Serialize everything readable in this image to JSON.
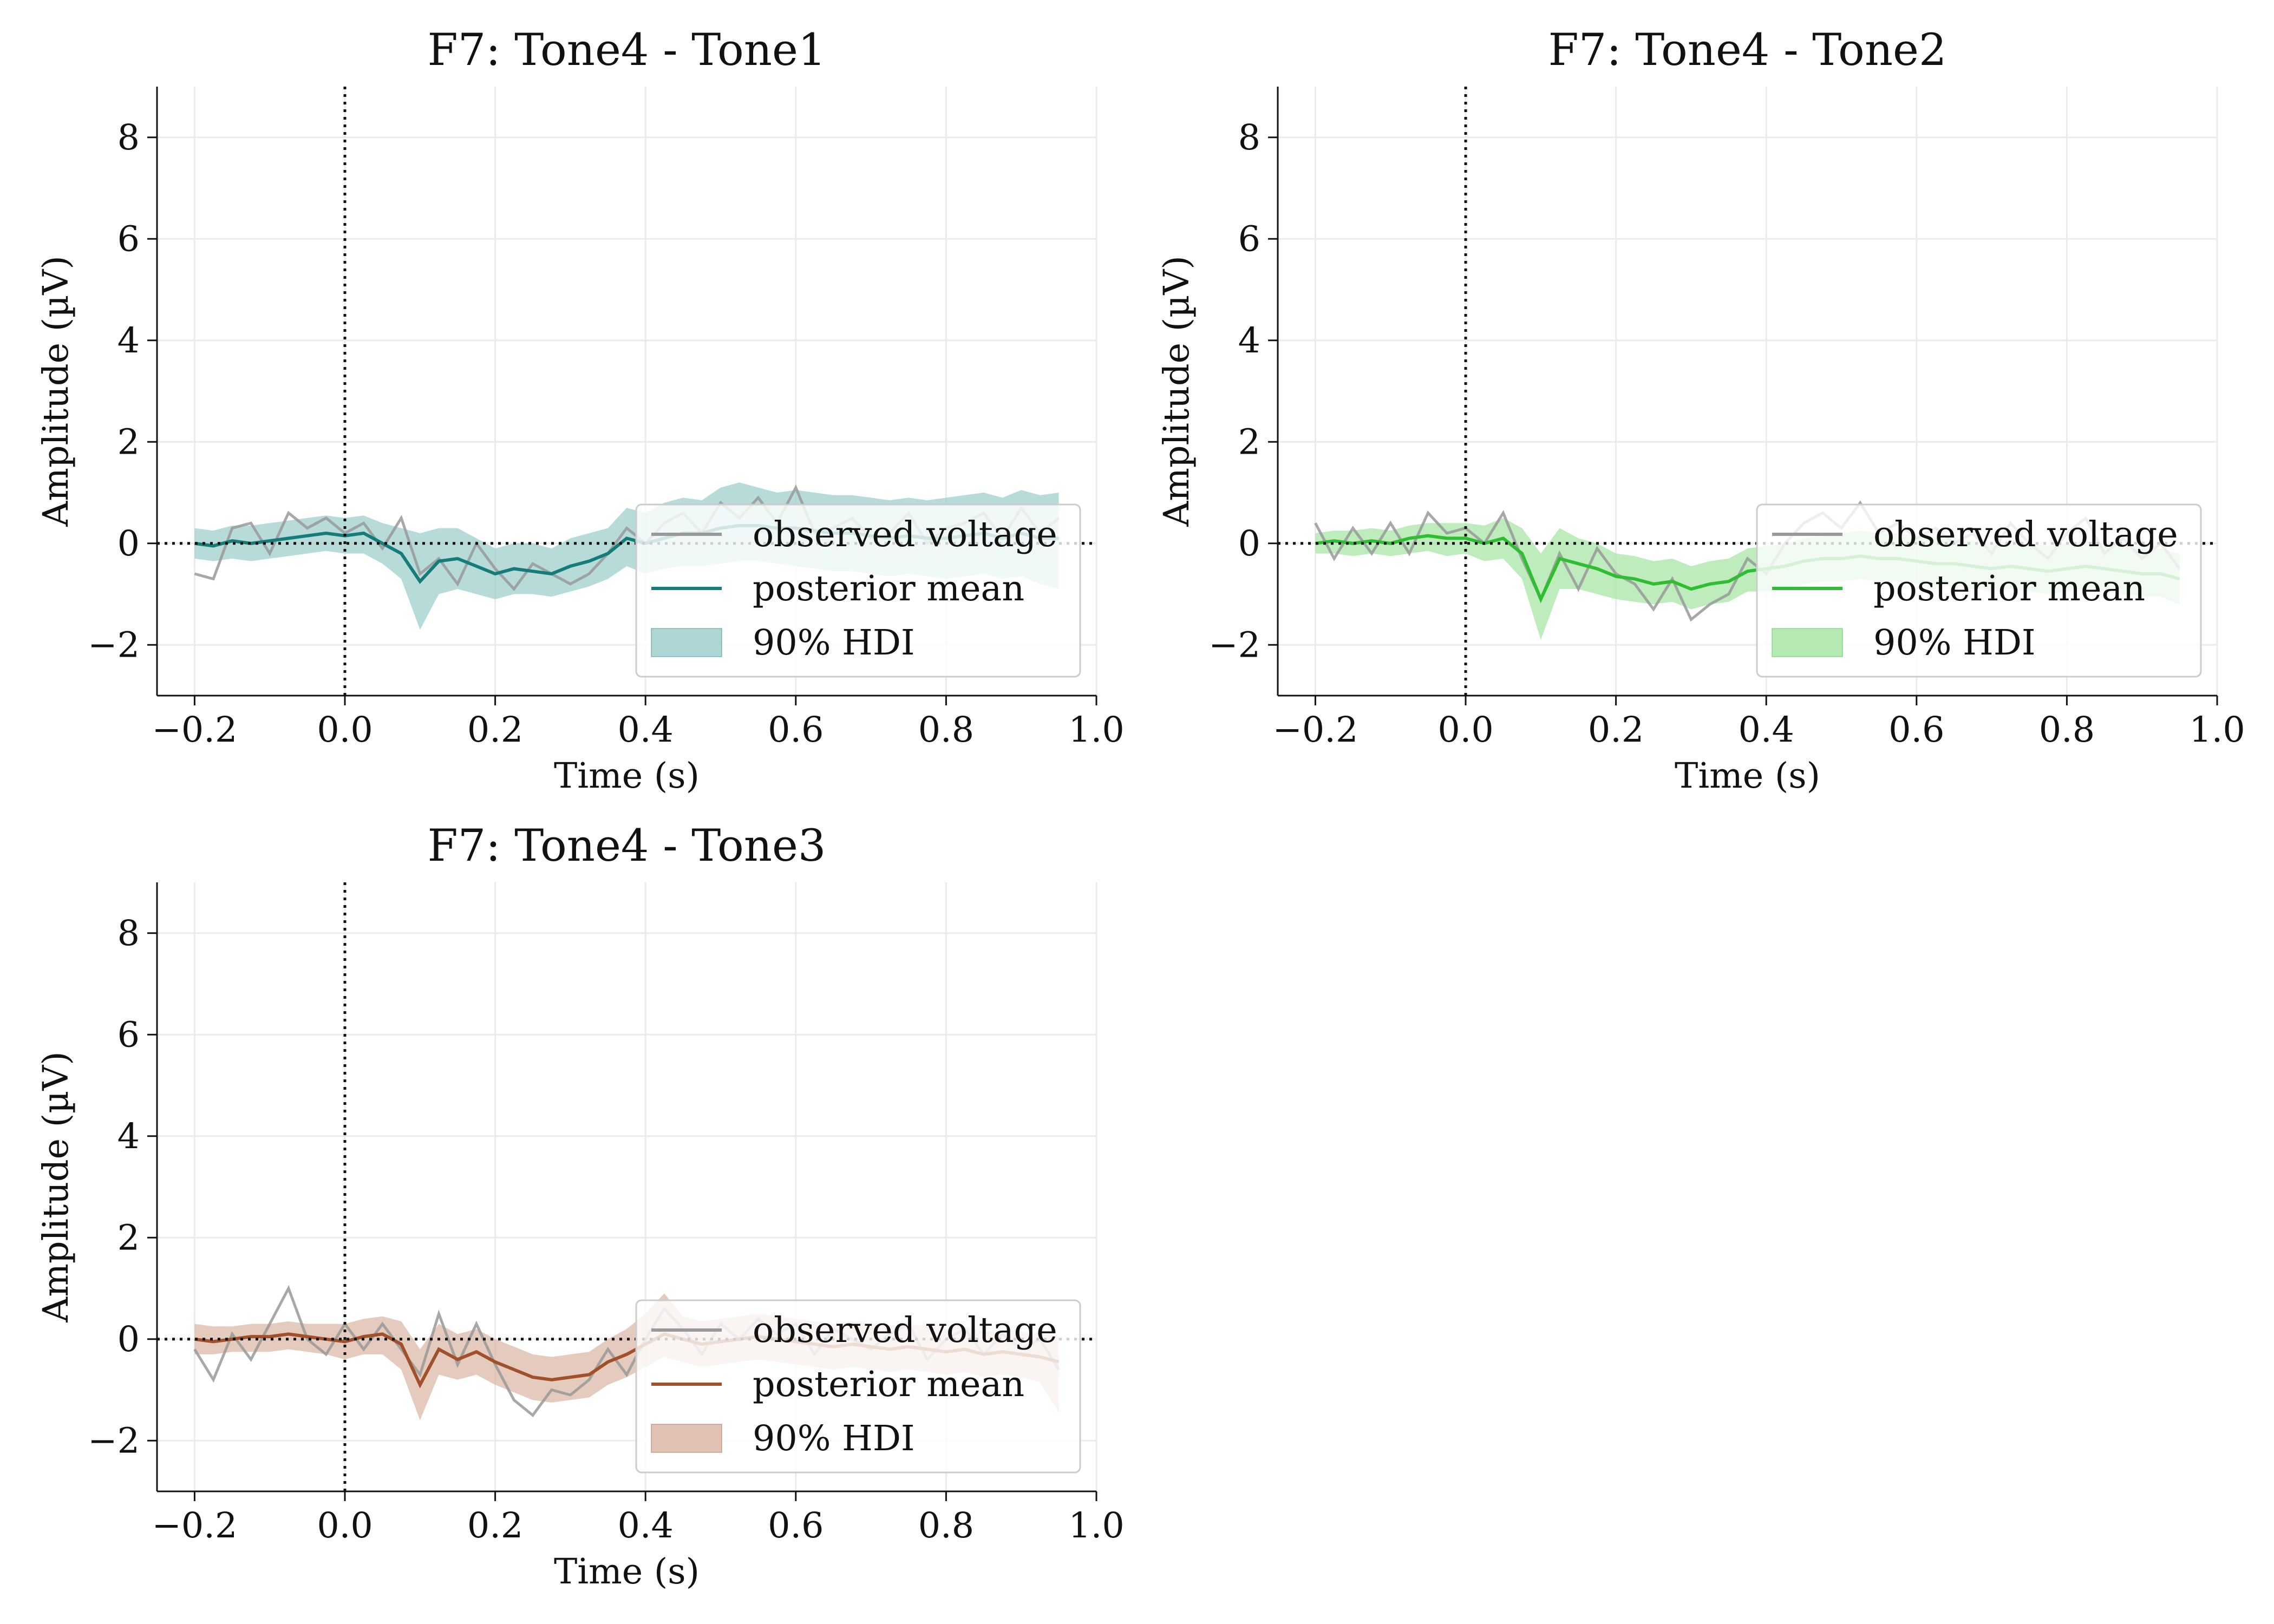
{
  "figure": {
    "xlabel": "Time (s)",
    "ylabel": "Amplitude (µV)",
    "xlim": [
      -0.25,
      1.0
    ],
    "ylim": [
      -3,
      9
    ],
    "xticks": [
      -0.2,
      0.0,
      0.2,
      0.4,
      0.6,
      0.8,
      1.0
    ],
    "xtick_labels": [
      "−0.2",
      "0.0",
      "0.2",
      "0.4",
      "0.6",
      "0.8",
      "1.0"
    ],
    "yticks": [
      -2,
      0,
      2,
      4,
      6,
      8
    ],
    "ytick_labels": [
      "−2",
      "0",
      "2",
      "4",
      "6",
      "8"
    ],
    "grid": true,
    "legend_location": "lower right",
    "legend": [
      "observed voltage",
      "posterior mean",
      "90% HDI"
    ],
    "observed_color": "#999999"
  },
  "chart_data": [
    {
      "type": "line",
      "title": "F7: Tone4 - Tone1",
      "color": "#167c7a",
      "band_color": "#9fcfcc",
      "x": [
        -0.2,
        -0.175,
        -0.15,
        -0.125,
        -0.1,
        -0.075,
        -0.05,
        -0.025,
        0.0,
        0.025,
        0.05,
        0.075,
        0.1,
        0.125,
        0.15,
        0.175,
        0.2,
        0.225,
        0.25,
        0.275,
        0.3,
        0.325,
        0.35,
        0.375,
        0.4,
        0.425,
        0.45,
        0.475,
        0.5,
        0.525,
        0.55,
        0.575,
        0.6,
        0.625,
        0.65,
        0.675,
        0.7,
        0.725,
        0.75,
        0.775,
        0.8,
        0.825,
        0.85,
        0.875,
        0.9,
        0.925,
        0.95
      ],
      "series": [
        {
          "name": "observed voltage",
          "values": [
            -0.6,
            -0.7,
            0.3,
            0.4,
            -0.2,
            0.6,
            0.3,
            0.5,
            0.2,
            0.4,
            -0.1,
            0.5,
            -0.6,
            -0.3,
            -0.8,
            0.0,
            -0.5,
            -0.9,
            -0.4,
            -0.6,
            -0.8,
            -0.6,
            -0.2,
            0.3,
            0.0,
            0.4,
            0.6,
            0.2,
            0.8,
            0.5,
            0.9,
            0.4,
            1.1,
            0.2,
            0.3,
            0.5,
            0.1,
            0.2,
            0.6,
            0.0,
            0.3,
            0.4,
            0.6,
            0.1,
            0.7,
            0.2,
            0.5
          ]
        },
        {
          "name": "posterior mean",
          "values": [
            0.0,
            -0.05,
            0.05,
            0.0,
            0.05,
            0.1,
            0.15,
            0.2,
            0.15,
            0.2,
            0.0,
            -0.2,
            -0.75,
            -0.35,
            -0.3,
            -0.45,
            -0.6,
            -0.5,
            -0.55,
            -0.6,
            -0.45,
            -0.35,
            -0.2,
            0.1,
            0.0,
            0.1,
            0.2,
            0.2,
            0.3,
            0.35,
            0.35,
            0.3,
            0.3,
            0.25,
            0.2,
            0.2,
            0.15,
            0.1,
            0.15,
            0.1,
            0.1,
            0.15,
            0.2,
            0.1,
            0.2,
            0.1,
            0.1
          ]
        },
        {
          "name": "90% HDI",
          "lower": [
            -0.3,
            -0.35,
            -0.3,
            -0.35,
            -0.3,
            -0.25,
            -0.2,
            -0.15,
            -0.2,
            -0.2,
            -0.4,
            -0.7,
            -1.7,
            -1.0,
            -0.9,
            -1.0,
            -1.1,
            -1.0,
            -1.0,
            -1.05,
            -0.95,
            -0.85,
            -0.7,
            -0.45,
            -0.6,
            -0.5,
            -0.45,
            -0.45,
            -0.4,
            -0.35,
            -0.35,
            -0.4,
            -0.45,
            -0.5,
            -0.55,
            -0.55,
            -0.6,
            -0.65,
            -0.6,
            -0.65,
            -0.7,
            -0.65,
            -0.6,
            -0.7,
            -0.65,
            -0.8,
            -0.9
          ],
          "upper": [
            0.3,
            0.25,
            0.35,
            0.35,
            0.4,
            0.45,
            0.5,
            0.55,
            0.5,
            0.55,
            0.4,
            0.3,
            0.2,
            0.3,
            0.3,
            0.1,
            -0.1,
            0.0,
            0.0,
            -0.1,
            0.1,
            0.2,
            0.3,
            0.7,
            0.6,
            0.8,
            0.9,
            0.85,
            1.1,
            1.2,
            1.1,
            1.0,
            1.05,
            1.0,
            0.95,
            0.95,
            0.9,
            0.85,
            0.9,
            0.85,
            0.9,
            0.95,
            1.0,
            0.9,
            1.05,
            0.95,
            1.0
          ]
        }
      ]
    },
    {
      "type": "line",
      "title": "F7: Tone4 - Tone2",
      "color": "#2ebd33",
      "band_color": "#a8e6a6",
      "x": [
        -0.2,
        -0.175,
        -0.15,
        -0.125,
        -0.1,
        -0.075,
        -0.05,
        -0.025,
        0.0,
        0.025,
        0.05,
        0.075,
        0.1,
        0.125,
        0.15,
        0.175,
        0.2,
        0.225,
        0.25,
        0.275,
        0.3,
        0.325,
        0.35,
        0.375,
        0.4,
        0.425,
        0.45,
        0.475,
        0.5,
        0.525,
        0.55,
        0.575,
        0.6,
        0.625,
        0.65,
        0.675,
        0.7,
        0.725,
        0.75,
        0.775,
        0.8,
        0.825,
        0.85,
        0.875,
        0.9,
        0.925,
        0.95
      ],
      "series": [
        {
          "name": "observed voltage",
          "values": [
            0.4,
            -0.3,
            0.3,
            -0.2,
            0.4,
            -0.2,
            0.6,
            0.2,
            0.3,
            0.0,
            0.6,
            -0.3,
            -1.1,
            -0.2,
            -0.9,
            -0.1,
            -0.6,
            -0.8,
            -1.3,
            -0.7,
            -1.5,
            -1.2,
            -1.0,
            -0.3,
            -0.6,
            0.0,
            0.4,
            0.6,
            0.3,
            0.8,
            0.2,
            0.4,
            0.1,
            0.3,
            0.0,
            0.2,
            -0.2,
            0.4,
            0.0,
            -0.3,
            0.2,
            0.5,
            -0.2,
            0.1,
            -0.3,
            0.0,
            -0.5
          ]
        },
        {
          "name": "posterior mean",
          "values": [
            0.0,
            0.05,
            0.0,
            0.05,
            0.0,
            0.1,
            0.15,
            0.1,
            0.1,
            0.0,
            0.1,
            -0.2,
            -1.1,
            -0.3,
            -0.4,
            -0.5,
            -0.65,
            -0.7,
            -0.8,
            -0.75,
            -0.9,
            -0.8,
            -0.75,
            -0.55,
            -0.5,
            -0.45,
            -0.35,
            -0.3,
            -0.3,
            -0.25,
            -0.3,
            -0.3,
            -0.35,
            -0.4,
            -0.4,
            -0.45,
            -0.5,
            -0.45,
            -0.5,
            -0.55,
            -0.5,
            -0.45,
            -0.5,
            -0.55,
            -0.6,
            -0.6,
            -0.7
          ]
        },
        {
          "name": "90% HDI",
          "lower": [
            -0.2,
            -0.2,
            -0.25,
            -0.2,
            -0.25,
            -0.2,
            -0.15,
            -0.25,
            -0.2,
            -0.35,
            -0.3,
            -0.7,
            -1.9,
            -0.9,
            -0.9,
            -1.0,
            -1.1,
            -1.15,
            -1.2,
            -1.15,
            -1.3,
            -1.2,
            -1.15,
            -0.95,
            -0.95,
            -0.9,
            -0.8,
            -0.75,
            -0.75,
            -0.7,
            -0.75,
            -0.75,
            -0.8,
            -0.85,
            -0.85,
            -0.9,
            -0.95,
            -0.9,
            -0.95,
            -1.0,
            -0.95,
            -0.9,
            -0.95,
            -1.0,
            -1.05,
            -1.05,
            -1.2
          ],
          "upper": [
            0.2,
            0.25,
            0.25,
            0.3,
            0.25,
            0.35,
            0.4,
            0.4,
            0.4,
            0.35,
            0.5,
            0.3,
            -0.2,
            0.3,
            0.1,
            0.0,
            -0.2,
            -0.25,
            -0.35,
            -0.3,
            -0.45,
            -0.35,
            -0.3,
            -0.1,
            -0.05,
            0.0,
            0.1,
            0.15,
            0.2,
            0.25,
            0.2,
            0.2,
            0.15,
            0.1,
            0.1,
            0.05,
            0.0,
            0.05,
            0.0,
            -0.05,
            0.0,
            0.05,
            0.0,
            -0.05,
            -0.1,
            -0.1,
            -0.2
          ]
        }
      ]
    },
    {
      "type": "line",
      "title": "F7: Tone4 - Tone3",
      "color": "#a0502a",
      "band_color": "#dbb9a7",
      "x": [
        -0.2,
        -0.175,
        -0.15,
        -0.125,
        -0.1,
        -0.075,
        -0.05,
        -0.025,
        0.0,
        0.025,
        0.05,
        0.075,
        0.1,
        0.125,
        0.15,
        0.175,
        0.2,
        0.225,
        0.25,
        0.275,
        0.3,
        0.325,
        0.35,
        0.375,
        0.4,
        0.425,
        0.45,
        0.475,
        0.5,
        0.525,
        0.55,
        0.575,
        0.6,
        0.625,
        0.65,
        0.675,
        0.7,
        0.725,
        0.75,
        0.775,
        0.8,
        0.825,
        0.85,
        0.875,
        0.9,
        0.925,
        0.95
      ],
      "series": [
        {
          "name": "observed voltage",
          "values": [
            -0.2,
            -0.8,
            0.1,
            -0.4,
            0.3,
            1.0,
            0.0,
            -0.3,
            0.3,
            -0.2,
            0.3,
            -0.2,
            -0.7,
            0.5,
            -0.5,
            0.3,
            -0.5,
            -1.2,
            -1.5,
            -1.0,
            -1.1,
            -0.8,
            -0.2,
            -0.7,
            0.0,
            0.6,
            0.2,
            -0.3,
            0.3,
            0.0,
            0.4,
            0.1,
            0.3,
            -0.3,
            0.2,
            0.0,
            -0.2,
            0.1,
            0.3,
            -0.4,
            0.0,
            0.2,
            -0.3,
            0.1,
            -0.2,
            0.0,
            -0.6
          ]
        },
        {
          "name": "posterior mean",
          "values": [
            0.0,
            -0.05,
            0.0,
            0.05,
            0.05,
            0.1,
            0.05,
            0.0,
            -0.05,
            0.05,
            0.1,
            -0.1,
            -0.9,
            -0.2,
            -0.4,
            -0.25,
            -0.45,
            -0.6,
            -0.75,
            -0.8,
            -0.75,
            -0.7,
            -0.45,
            -0.3,
            -0.1,
            0.1,
            0.0,
            -0.1,
            -0.05,
            0.0,
            0.05,
            0.0,
            -0.05,
            -0.1,
            -0.15,
            -0.1,
            -0.15,
            -0.2,
            -0.15,
            -0.2,
            -0.25,
            -0.2,
            -0.3,
            -0.25,
            -0.3,
            -0.35,
            -0.45
          ]
        },
        {
          "name": "90% HDI",
          "lower": [
            -0.3,
            -0.3,
            -0.25,
            -0.25,
            -0.25,
            -0.2,
            -0.25,
            -0.3,
            -0.4,
            -0.3,
            -0.3,
            -0.6,
            -1.6,
            -0.7,
            -0.8,
            -0.7,
            -0.9,
            -1.05,
            -1.2,
            -1.25,
            -1.2,
            -1.15,
            -0.9,
            -0.75,
            -0.55,
            -0.35,
            -0.45,
            -0.55,
            -0.5,
            -0.45,
            -0.4,
            -0.45,
            -0.5,
            -0.55,
            -0.6,
            -0.55,
            -0.6,
            -0.65,
            -0.6,
            -0.65,
            -0.7,
            -0.65,
            -0.75,
            -0.7,
            -0.75,
            -0.85,
            -1.45
          ],
          "upper": [
            0.3,
            0.25,
            0.25,
            0.3,
            0.3,
            0.35,
            0.3,
            0.3,
            0.3,
            0.4,
            0.45,
            0.35,
            -0.2,
            0.3,
            0.1,
            0.2,
            0.0,
            -0.15,
            -0.3,
            -0.35,
            -0.3,
            -0.25,
            0.0,
            0.2,
            0.5,
            0.9,
            0.45,
            0.35,
            0.4,
            0.45,
            0.5,
            0.45,
            0.4,
            0.35,
            0.3,
            0.35,
            0.3,
            0.25,
            0.3,
            0.25,
            0.2,
            0.25,
            0.15,
            0.2,
            0.15,
            0.1,
            0.05
          ]
        }
      ]
    }
  ]
}
